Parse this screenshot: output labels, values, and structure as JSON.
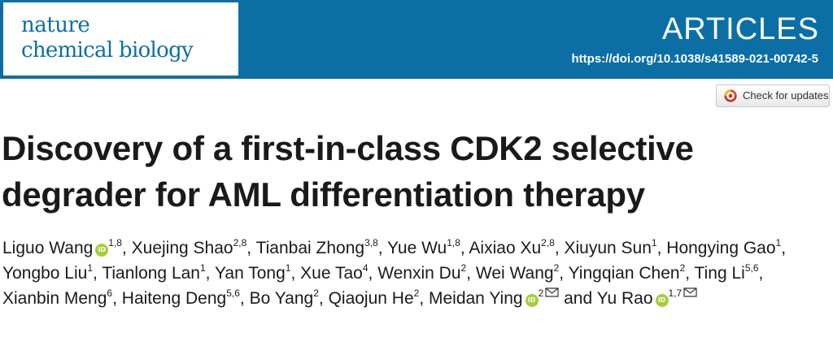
{
  "journal": {
    "logo_line1": "nature",
    "logo_line2": "chemical biology"
  },
  "header": {
    "section_label": "ARTICLES",
    "doi": "https://doi.org/10.1038/s41589-021-00742-5"
  },
  "check_updates": {
    "label": "Check for updates"
  },
  "article": {
    "title_line1": "Discovery of a first-in-class CDK2 selective",
    "title_line2": "degrader for AML differentiation therapy"
  },
  "authors": [
    {
      "name": "Liguo Wang",
      "affil": "1,8",
      "orcid": true,
      "email": false
    },
    {
      "name": "Xuejing Shao",
      "affil": "2,8",
      "orcid": false,
      "email": false
    },
    {
      "name": "Tianbai Zhong",
      "affil": "3,8",
      "orcid": false,
      "email": false
    },
    {
      "name": "Yue Wu",
      "affil": "1,8",
      "orcid": false,
      "email": false
    },
    {
      "name": "Aixiao Xu",
      "affil": "2,8",
      "orcid": false,
      "email": false
    },
    {
      "name": "Xiuyun Sun",
      "affil": "1",
      "orcid": false,
      "email": false
    },
    {
      "name": "Hongying Gao",
      "affil": "1",
      "orcid": false,
      "email": false
    },
    {
      "name": "Yongbo Liu",
      "affil": "1",
      "orcid": false,
      "email": false
    },
    {
      "name": "Tianlong Lan",
      "affil": "1",
      "orcid": false,
      "email": false
    },
    {
      "name": "Yan Tong",
      "affil": "1",
      "orcid": false,
      "email": false
    },
    {
      "name": "Xue Tao",
      "affil": "4",
      "orcid": false,
      "email": false
    },
    {
      "name": "Wenxin Du",
      "affil": "2",
      "orcid": false,
      "email": false
    },
    {
      "name": "Wei Wang",
      "affil": "2",
      "orcid": false,
      "email": false
    },
    {
      "name": "Yingqian Chen",
      "affil": "2",
      "orcid": false,
      "email": false
    },
    {
      "name": "Ting Li",
      "affil": "5,6",
      "orcid": false,
      "email": false
    },
    {
      "name": "Xianbin Meng",
      "affil": "6",
      "orcid": false,
      "email": false
    },
    {
      "name": "Haiteng Deng",
      "affil": "5,6",
      "orcid": false,
      "email": false
    },
    {
      "name": "Bo Yang",
      "affil": "2",
      "orcid": false,
      "email": false
    },
    {
      "name": "Qiaojun He",
      "affil": "2",
      "orcid": false,
      "email": false
    },
    {
      "name": "Meidan Ying",
      "affil": "2",
      "orcid": true,
      "email": true
    },
    {
      "name": "Yu Rao",
      "affil": "1,7",
      "orcid": true,
      "email": true
    }
  ],
  "author_separator": ", ",
  "author_last_joiner": "and",
  "orcid_icon_text": "iD",
  "colors": {
    "banner": "#0b6fa6",
    "orcid": "#a6ce39"
  }
}
